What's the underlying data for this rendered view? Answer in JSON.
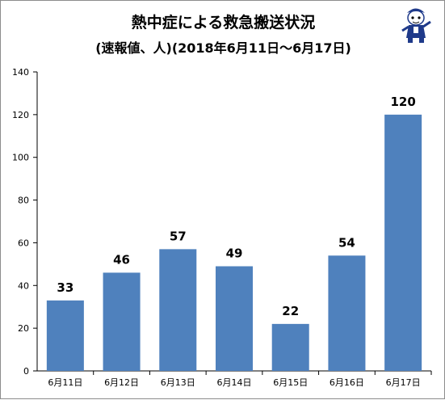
{
  "chart_data": {
    "type": "bar",
    "title": "熱中症による救急搬送状況",
    "subtitle": "(速報値、人)(2018年6月11日～6月17日)",
    "categories": [
      "6月11日",
      "6月12日",
      "6月13日",
      "6月14日",
      "6月15日",
      "6月16日",
      "6月17日"
    ],
    "values": [
      33,
      46,
      57,
      49,
      22,
      54,
      120
    ],
    "ylim": [
      0,
      140
    ],
    "yticks": [
      0,
      20,
      40,
      60,
      80,
      100,
      120,
      140
    ],
    "xlabel": "",
    "ylabel": "",
    "grid": false,
    "legend": "none",
    "bar_color": "#4f81bd",
    "show_value_labels": true
  },
  "mascot": {
    "icon": "cartoon-mascot-icon"
  }
}
